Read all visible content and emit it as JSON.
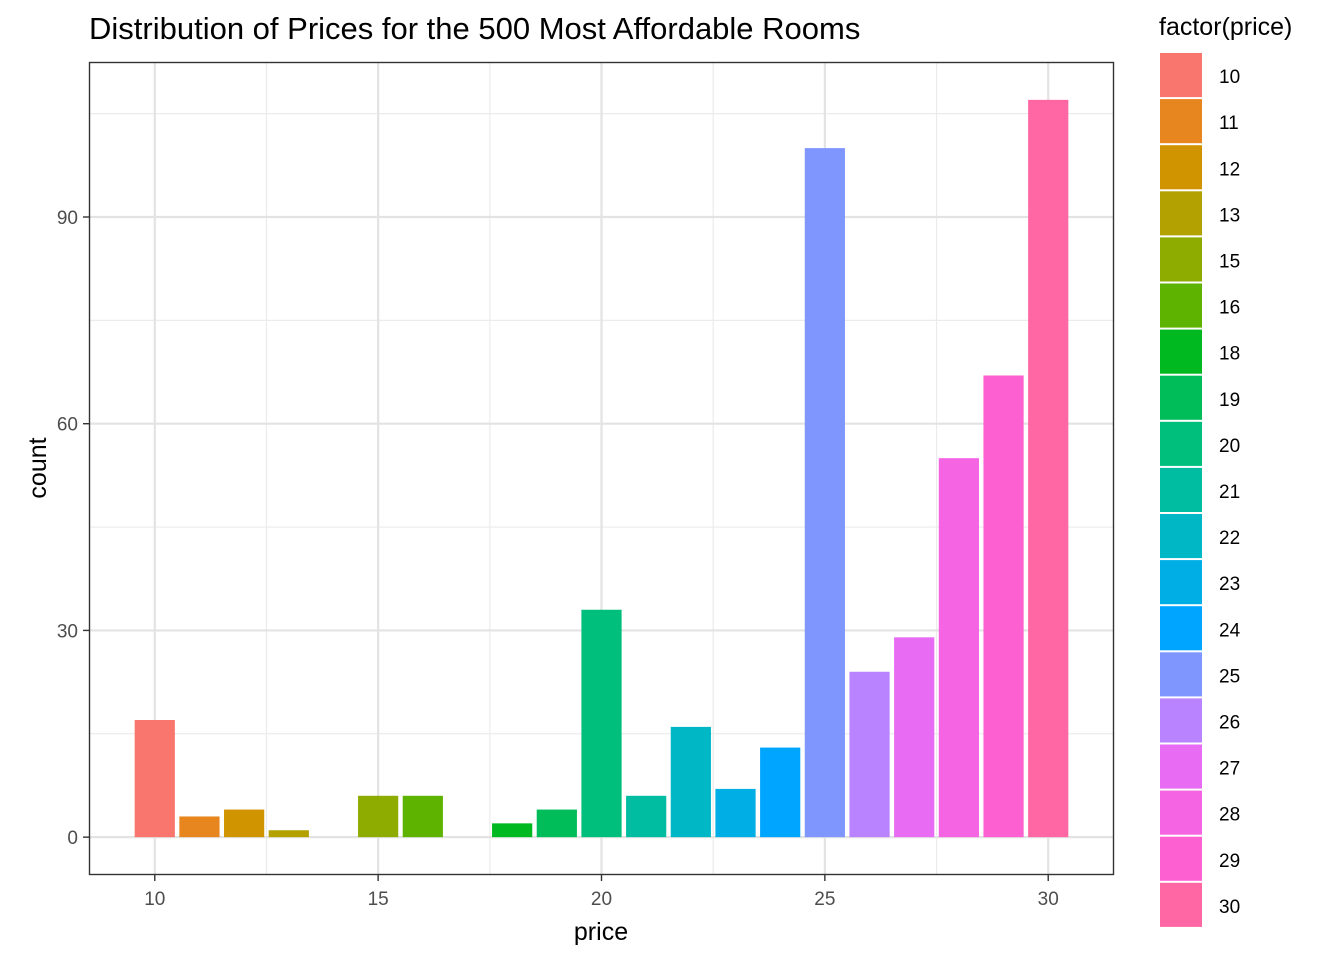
{
  "chart_data": {
    "type": "bar",
    "title": "Distribution of Prices for the 500 Most Affordable Rooms",
    "xlabel": "price",
    "ylabel": "count",
    "x": [
      10,
      11,
      12,
      13,
      15,
      16,
      18,
      19,
      20,
      21,
      22,
      23,
      24,
      25,
      26,
      27,
      28,
      29,
      30
    ],
    "values": [
      17,
      3,
      4,
      1,
      6,
      6,
      2,
      4,
      33,
      6,
      16,
      7,
      13,
      100,
      24,
      29,
      55,
      67,
      107
    ],
    "xlim": [
      8.55,
      31.45
    ],
    "ylim": [
      -5.35,
      112.35
    ],
    "x_ticks": [
      10,
      15,
      20,
      25,
      30
    ],
    "y_ticks": [
      0,
      30,
      60,
      90
    ],
    "grid": true,
    "legend": {
      "title": "factor(price)",
      "position": "right",
      "entries": [
        "10",
        "11",
        "12",
        "13",
        "15",
        "16",
        "18",
        "19",
        "20",
        "21",
        "22",
        "23",
        "24",
        "25",
        "26",
        "27",
        "28",
        "29",
        "30"
      ],
      "colors": [
        "#F8766D",
        "#E7851E",
        "#D09400",
        "#B2A100",
        "#8EAB00",
        "#5EB300",
        "#00B81F",
        "#00BC59",
        "#00BF7D",
        "#00BDA2",
        "#00B8C5",
        "#00AEE6",
        "#00A5FF",
        "#7F96FF",
        "#B983FF",
        "#E76BF3",
        "#F564E3",
        "#FD61D1",
        "#FF67A4"
      ]
    }
  }
}
